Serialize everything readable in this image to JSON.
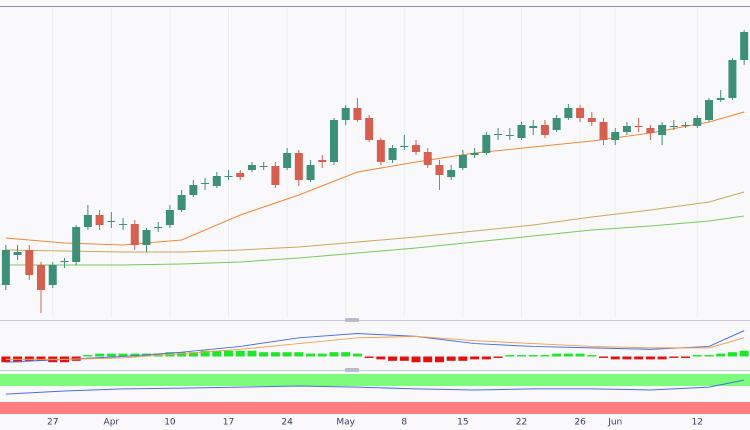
{
  "chart_data": {
    "type": "candlestick",
    "ylim": [
      0,
      310
    ],
    "xlim": [
      -0.5,
      63.5
    ],
    "up_color": "#3d8f77",
    "down_color": "#d5604f",
    "xticks": [
      {
        "value": 4,
        "label": "27"
      },
      {
        "value": 9,
        "label": "Apr"
      },
      {
        "value": 14,
        "label": "10"
      },
      {
        "value": 19,
        "label": "17"
      },
      {
        "value": 24,
        "label": "24"
      },
      {
        "value": 29,
        "label": "May"
      },
      {
        "value": 34,
        "label": "8"
      },
      {
        "value": 39,
        "label": "15"
      },
      {
        "value": 44,
        "label": "22"
      },
      {
        "value": 49,
        "label": "26"
      },
      {
        "value": 52,
        "label": "Jun"
      },
      {
        "value": 59,
        "label": "12"
      }
    ],
    "candles": {
      "open": [
        33,
        63,
        68,
        53,
        33,
        56,
        56,
        91,
        103,
        96,
        93,
        94,
        73,
        90,
        93,
        108,
        123,
        134,
        132,
        142,
        145,
        148,
        152,
        152,
        150,
        165,
        138,
        158,
        156,
        198,
        210,
        200,
        178,
        158,
        171,
        173,
        166,
        153,
        141,
        150,
        163,
        165,
        183,
        183,
        180,
        190,
        193,
        188,
        200,
        210,
        200,
        196,
        178,
        186,
        192,
        190,
        183,
        192,
        192,
        192,
        198,
        218,
        220,
        258
      ],
      "high": [
        73,
        73,
        73,
        56,
        56,
        60,
        93,
        113,
        108,
        106,
        100,
        98,
        90,
        96,
        113,
        128,
        138,
        140,
        146,
        148,
        148,
        156,
        156,
        156,
        170,
        168,
        158,
        163,
        200,
        213,
        220,
        203,
        180,
        173,
        183,
        178,
        170,
        158,
        153,
        168,
        170,
        186,
        190,
        190,
        196,
        198,
        198,
        203,
        214,
        213,
        206,
        200,
        190,
        196,
        200,
        193,
        196,
        198,
        196,
        203,
        220,
        228,
        260,
        288
      ],
      "low": [
        28,
        58,
        38,
        5,
        30,
        50,
        53,
        88,
        88,
        90,
        88,
        68,
        66,
        86,
        90,
        106,
        121,
        128,
        130,
        138,
        138,
        146,
        148,
        130,
        148,
        132,
        136,
        150,
        153,
        193,
        196,
        176,
        153,
        155,
        168,
        163,
        150,
        128,
        138,
        148,
        160,
        163,
        178,
        178,
        178,
        183,
        180,
        186,
        198,
        196,
        192,
        173,
        173,
        183,
        186,
        178,
        173,
        188,
        190,
        190,
        196,
        216,
        218,
        253
      ],
      "close": [
        68,
        66,
        43,
        28,
        53,
        57,
        91,
        103,
        93,
        97,
        94,
        73,
        88,
        91,
        108,
        123,
        133,
        135,
        142,
        142,
        141,
        153,
        152,
        133,
        165,
        138,
        153,
        156,
        198,
        210,
        198,
        178,
        156,
        170,
        172,
        166,
        153,
        143,
        148,
        163,
        165,
        183,
        184,
        183,
        193,
        192,
        183,
        200,
        210,
        200,
        196,
        178,
        186,
        192,
        191,
        185,
        193,
        192,
        193,
        200,
        218,
        220,
        258,
        286
      ]
    },
    "series": [
      {
        "color": "#f0883a",
        "x": [
          0,
          5,
          10,
          15,
          20,
          25,
          30,
          35,
          40,
          45,
          50,
          55,
          60,
          63
        ],
        "values": [
          80,
          75,
          73,
          78,
          103,
          123,
          146,
          156,
          165,
          171,
          177,
          185,
          196,
          206
        ]
      },
      {
        "color": "#c9a95c",
        "x": [
          0,
          5,
          10,
          15,
          20,
          25,
          30,
          35,
          40,
          45,
          50,
          55,
          60,
          63
        ],
        "values": [
          68,
          67,
          66,
          66,
          68,
          71,
          76,
          81,
          87,
          93,
          101,
          108,
          116,
          126
        ]
      },
      {
        "color": "#79c95e",
        "x": [
          0,
          5,
          10,
          15,
          20,
          25,
          30,
          35,
          40,
          45,
          50,
          55,
          60,
          63
        ],
        "values": [
          53,
          53,
          53,
          54,
          56,
          60,
          65,
          70,
          76,
          82,
          88,
          92,
          97,
          102
        ]
      }
    ],
    "macd": {
      "ylim": [
        -8,
        24
      ],
      "up_color": "#1fe62a",
      "down_color": "#e3100f",
      "histogram": [
        -4,
        -4,
        -3,
        -3,
        -4,
        -4,
        -3,
        1,
        2,
        2,
        2,
        2,
        2,
        2,
        3,
        3,
        3,
        4,
        4,
        4,
        4,
        4,
        3,
        3,
        3,
        3,
        2,
        2,
        3,
        3,
        2,
        -1,
        -2,
        -3,
        -3,
        -4,
        -4,
        -4,
        -3,
        -3,
        -2,
        -2,
        -1,
        1,
        1,
        1,
        1,
        2,
        2,
        2,
        1,
        -1,
        -2,
        -2,
        -2,
        -2,
        -2,
        -1,
        -1,
        1,
        1,
        2,
        3,
        4
      ],
      "lines": [
        {
          "color": "#4a6ee0",
          "x": [
            0,
            5,
            10,
            15,
            20,
            25,
            30,
            35,
            40,
            45,
            50,
            55,
            60,
            63
          ],
          "values": [
            -4,
            -2,
            0,
            3,
            7,
            13,
            16,
            14,
            9,
            7,
            6,
            5,
            7,
            18
          ]
        },
        {
          "color": "#f0a050",
          "x": [
            0,
            5,
            10,
            15,
            20,
            25,
            30,
            35,
            40,
            45,
            50,
            55,
            60,
            63
          ],
          "values": [
            -2,
            -2,
            -1,
            2,
            5,
            9,
            13,
            14,
            11,
            9,
            7,
            6,
            6,
            13
          ]
        }
      ]
    },
    "oscillator": {
      "ylim": [
        0,
        100
      ],
      "lines": [
        {
          "color": "#4a6ee0",
          "x": [
            0,
            5,
            10,
            15,
            20,
            25,
            30,
            35,
            40,
            45,
            50,
            55,
            60,
            63
          ],
          "values": [
            15,
            27,
            35,
            38,
            42,
            46,
            42,
            35,
            31,
            35,
            35,
            31,
            42,
            69
          ]
        }
      ]
    }
  }
}
